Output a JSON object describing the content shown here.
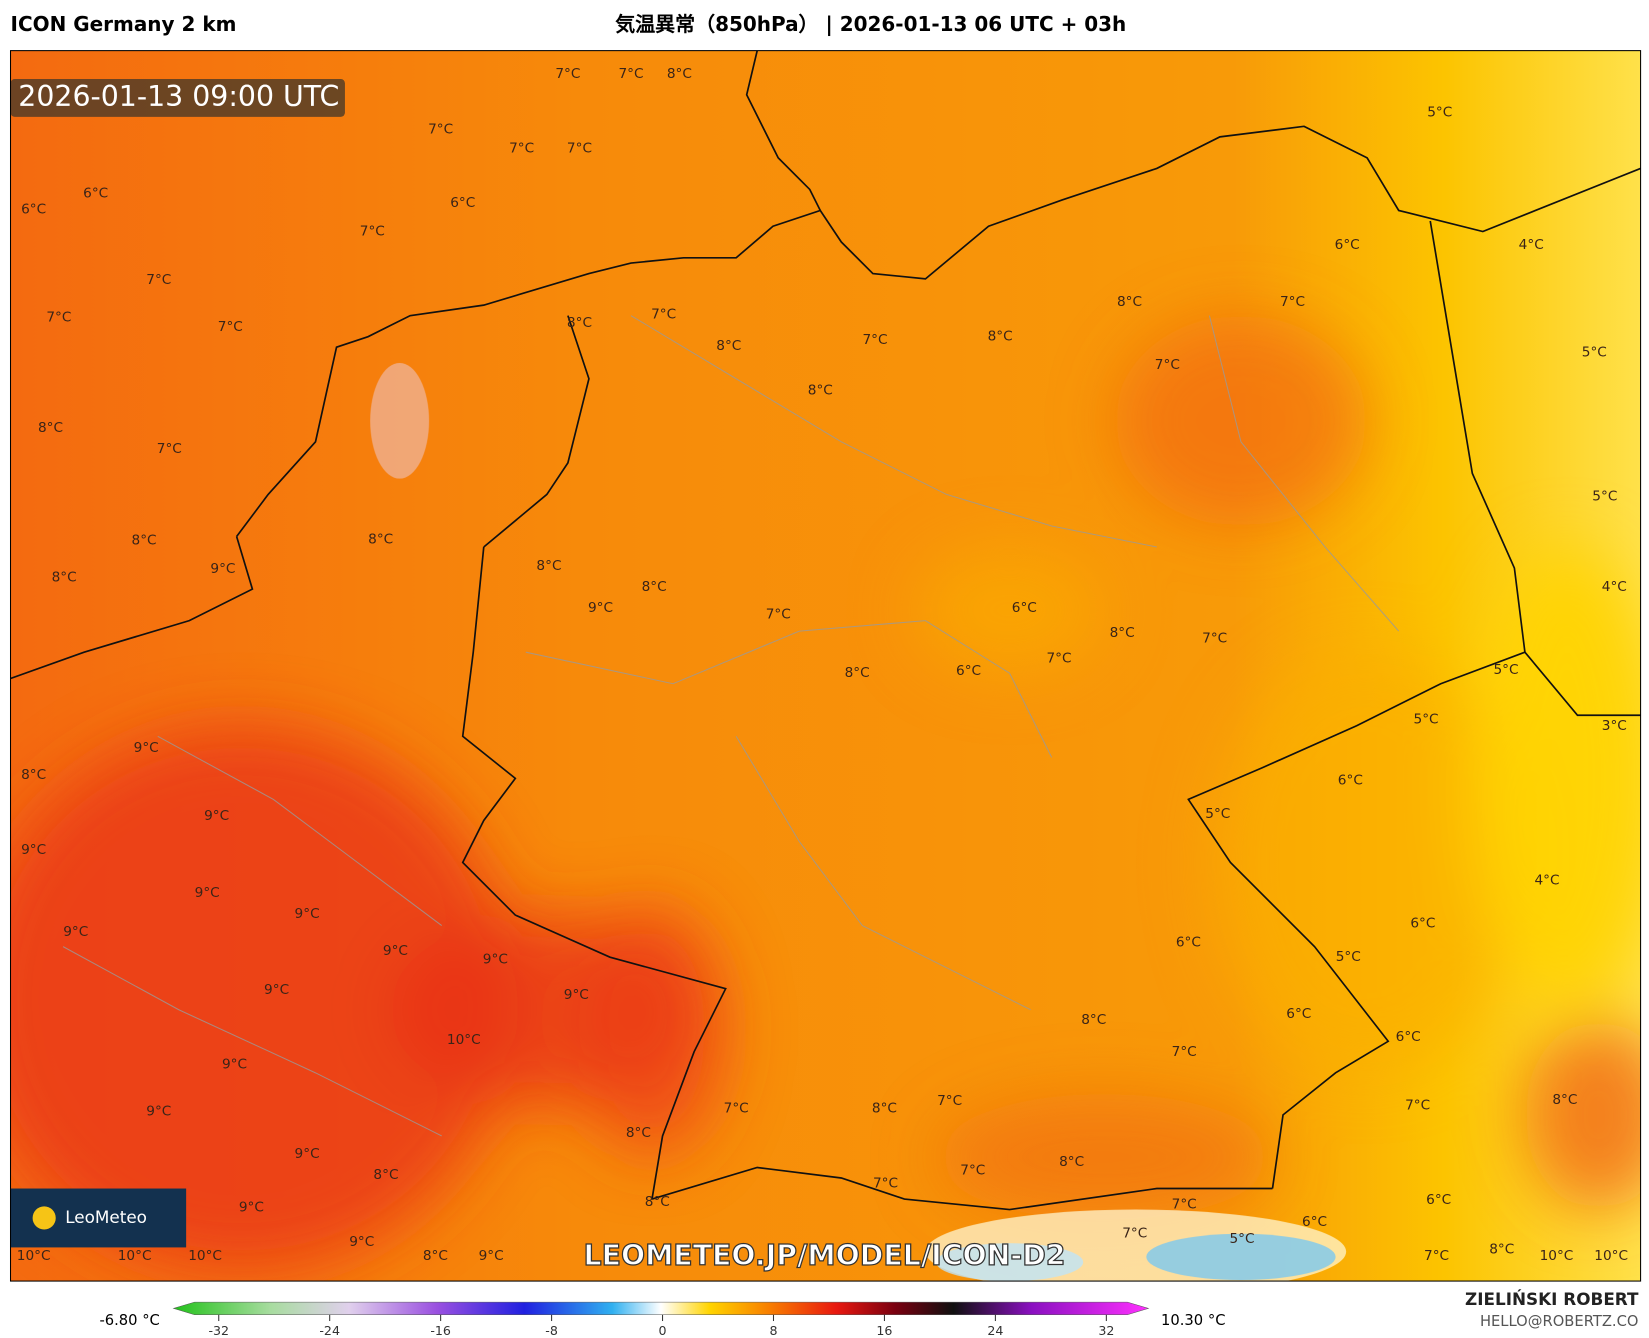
{
  "header": {
    "title_left": "ICON Germany 2 km",
    "title_center": "気温異常（850hPa） | 2026-01-13 06 UTC + 03h"
  },
  "map": {
    "timestamp": "2026-01-13 09:00 UTC",
    "watermark": "LEOMETEO.JP/MODEL/ICON-D2",
    "logo": "LeoMeteo",
    "labels": [
      "7°C",
      "7°C",
      "8°C",
      "7°C",
      "7°C",
      "7°C",
      "6°C",
      "6°C",
      "6°C",
      "7°C",
      "7°C",
      "7°C",
      "7°C",
      "8°C",
      "7°C",
      "8°C",
      "7°C",
      "8°C",
      "8°C",
      "7°C",
      "8°C",
      "7°C",
      "6°C",
      "5°C",
      "4°C",
      "5°C",
      "5°C",
      "4°C",
      "3°C",
      "8°C",
      "7°C",
      "8°C",
      "8°C",
      "9°C",
      "8°C",
      "8°C",
      "9°C",
      "8°C",
      "7°C",
      "8°C",
      "6°C",
      "7°C",
      "6°C",
      "8°C",
      "7°C",
      "5°C",
      "5°C",
      "6°C",
      "5°C",
      "9°C",
      "8°C",
      "9°C",
      "9°C",
      "9°C",
      "9°C",
      "9°C",
      "9°C",
      "9°C",
      "9°C",
      "9°C",
      "10°C",
      "9°C",
      "9°C",
      "9°C",
      "8°C",
      "9°C",
      "9°C",
      "10°C",
      "10°C",
      "10°C",
      "8°C",
      "9°C",
      "8°C",
      "7°C",
      "8°C",
      "7°C",
      "8°C",
      "7°C",
      "6°C",
      "5°C",
      "6°C",
      "4°C",
      "6°C",
      "6°C",
      "7°C",
      "8°C",
      "6°C",
      "8°C",
      "7°C",
      "10°C",
      "10°C",
      "6°C",
      "5°C",
      "7°C",
      "7°C",
      "8°C",
      "7°C",
      "7°C",
      "8°C"
    ]
  },
  "colorbar": {
    "min_label": "-6.80 °C",
    "max_label": "10.30 °C",
    "ticks": [
      -32,
      -24,
      -16,
      -8,
      0,
      8,
      16,
      24,
      32
    ]
  },
  "footer": {
    "author": "ZIELIŃSKI ROBERT",
    "email": "HELLO@ROBERTZ.CO"
  }
}
